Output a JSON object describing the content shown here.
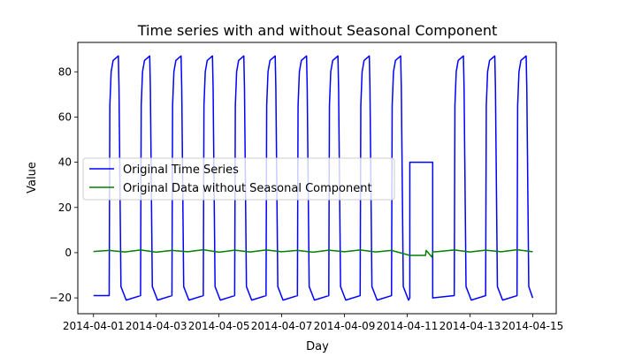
{
  "chart_data": {
    "type": "line",
    "title": "Time series with and without Seasonal Component",
    "xlabel": "Day",
    "ylabel": "Value",
    "xlim": [
      "2014-03-31T12:00",
      "2014-04-15T18:00"
    ],
    "ylim": [
      -27,
      93
    ],
    "x_ticks": [
      "2014-04-01",
      "2014-04-03",
      "2014-04-05",
      "2014-04-07",
      "2014-04-09",
      "2014-04-11",
      "2014-04-13",
      "2014-04-15"
    ],
    "y_ticks": [
      -20,
      0,
      20,
      40,
      60,
      80
    ],
    "grid": false,
    "legend_position": "center-left",
    "series": [
      {
        "name": "Original Time Series",
        "color": "#0000ff",
        "x": [
          "2014-04-01T00:00",
          "2014-04-01T12:00",
          "2014-04-01T12:30",
          "2014-04-01T13:30",
          "2014-04-01T15:00",
          "2014-04-01T19:00",
          "2014-04-01T19:30",
          "2014-04-01T21:00",
          "2014-04-02T01:00",
          "2014-04-02T12:00",
          "2014-04-02T12:30",
          "2014-04-02T13:30",
          "2014-04-02T15:00",
          "2014-04-02T19:00",
          "2014-04-02T19:30",
          "2014-04-02T21:00",
          "2014-04-03T01:00",
          "2014-04-03T12:00",
          "2014-04-03T12:30",
          "2014-04-03T13:30",
          "2014-04-03T15:00",
          "2014-04-03T19:00",
          "2014-04-03T19:30",
          "2014-04-03T21:00",
          "2014-04-04T01:00",
          "2014-04-04T12:00",
          "2014-04-04T12:30",
          "2014-04-04T13:30",
          "2014-04-04T15:00",
          "2014-04-04T19:00",
          "2014-04-04T19:30",
          "2014-04-04T21:00",
          "2014-04-05T01:00",
          "2014-04-05T12:00",
          "2014-04-05T12:30",
          "2014-04-05T13:30",
          "2014-04-05T15:00",
          "2014-04-05T19:00",
          "2014-04-05T19:30",
          "2014-04-05T21:00",
          "2014-04-06T01:00",
          "2014-04-06T12:00",
          "2014-04-06T12:30",
          "2014-04-06T13:30",
          "2014-04-06T15:00",
          "2014-04-06T19:00",
          "2014-04-06T19:30",
          "2014-04-06T21:00",
          "2014-04-07T01:00",
          "2014-04-07T12:00",
          "2014-04-07T12:30",
          "2014-04-07T13:30",
          "2014-04-07T15:00",
          "2014-04-07T19:00",
          "2014-04-07T19:30",
          "2014-04-07T21:00",
          "2014-04-08T01:00",
          "2014-04-08T12:00",
          "2014-04-08T12:30",
          "2014-04-08T13:30",
          "2014-04-08T15:00",
          "2014-04-08T19:00",
          "2014-04-08T19:30",
          "2014-04-08T21:00",
          "2014-04-09T01:00",
          "2014-04-09T12:00",
          "2014-04-09T12:30",
          "2014-04-09T13:30",
          "2014-04-09T15:00",
          "2014-04-09T19:00",
          "2014-04-09T19:30",
          "2014-04-09T21:00",
          "2014-04-10T01:00",
          "2014-04-10T12:00",
          "2014-04-10T12:30",
          "2014-04-10T13:30",
          "2014-04-10T15:00",
          "2014-04-10T19:00",
          "2014-04-10T19:30",
          "2014-04-10T21:00",
          "2014-04-11T01:00",
          "2014-04-11T02:00",
          "2014-04-11T02:01",
          "2014-04-11T19:30",
          "2014-04-11T19:31",
          "2014-04-12T12:00",
          "2014-04-12T12:30",
          "2014-04-12T13:30",
          "2014-04-12T15:00",
          "2014-04-12T19:00",
          "2014-04-12T19:30",
          "2014-04-12T21:00",
          "2014-04-13T01:00",
          "2014-04-13T12:00",
          "2014-04-13T12:30",
          "2014-04-13T13:30",
          "2014-04-13T15:00",
          "2014-04-13T19:00",
          "2014-04-13T19:30",
          "2014-04-13T21:00",
          "2014-04-14T01:00",
          "2014-04-14T12:00",
          "2014-04-14T12:30",
          "2014-04-14T13:30",
          "2014-04-14T15:00",
          "2014-04-14T19:00",
          "2014-04-14T19:30",
          "2014-04-14T21:00",
          "2014-04-15T00:00"
        ],
        "values": [
          -19,
          -19,
          65,
          80,
          85,
          87,
          73,
          -15,
          -21,
          -19,
          65,
          80,
          85,
          87,
          73,
          -15,
          -21,
          -19,
          65,
          80,
          85,
          87,
          73,
          -15,
          -21,
          -19,
          65,
          80,
          85,
          87,
          73,
          -15,
          -21,
          -19,
          65,
          80,
          85,
          87,
          73,
          -15,
          -21,
          -19,
          65,
          80,
          85,
          87,
          73,
          -15,
          -21,
          -19,
          65,
          80,
          85,
          87,
          73,
          -15,
          -21,
          -19,
          65,
          80,
          85,
          87,
          73,
          -15,
          -21,
          -19,
          65,
          80,
          85,
          87,
          73,
          -15,
          -21,
          -19,
          65,
          80,
          85,
          87,
          73,
          -15,
          -21,
          -20,
          40,
          40,
          -20,
          -19,
          65,
          80,
          85,
          87,
          73,
          -15,
          -21,
          -19,
          65,
          80,
          85,
          87,
          73,
          -15,
          -21,
          -19,
          65,
          80,
          85,
          87,
          73,
          -15,
          -20
        ]
      },
      {
        "name": "Original Data without Seasonal Component",
        "color": "#008000",
        "x": [
          "2014-04-01T00:00",
          "2014-04-01T12:00",
          "2014-04-02T00:00",
          "2014-04-02T12:00",
          "2014-04-03T00:00",
          "2014-04-03T12:00",
          "2014-04-04T00:00",
          "2014-04-04T12:00",
          "2014-04-05T00:00",
          "2014-04-05T12:00",
          "2014-04-06T00:00",
          "2014-04-06T12:00",
          "2014-04-07T00:00",
          "2014-04-07T12:00",
          "2014-04-08T00:00",
          "2014-04-08T12:00",
          "2014-04-09T00:00",
          "2014-04-09T12:00",
          "2014-04-10T00:00",
          "2014-04-10T12:00",
          "2014-04-11T02:00",
          "2014-04-11T14:00",
          "2014-04-11T14:30",
          "2014-04-11T19:00",
          "2014-04-11T19:30",
          "2014-04-12T00:00",
          "2014-04-12T12:00",
          "2014-04-13T00:00",
          "2014-04-13T12:00",
          "2014-04-14T00:00",
          "2014-04-14T12:00",
          "2014-04-15T00:00"
        ],
        "values": [
          0.5,
          1.0,
          0.3,
          1.2,
          0.2,
          1.0,
          0.4,
          1.3,
          0.2,
          1.1,
          0.3,
          1.2,
          0.4,
          1.0,
          0.2,
          1.1,
          0.4,
          1.2,
          0.3,
          1.0,
          -1.2,
          -1.2,
          1.0,
          -2.0,
          0.3,
          0.5,
          1.2,
          0.3,
          1.1,
          0.4,
          1.3,
          0.4
        ]
      }
    ]
  }
}
